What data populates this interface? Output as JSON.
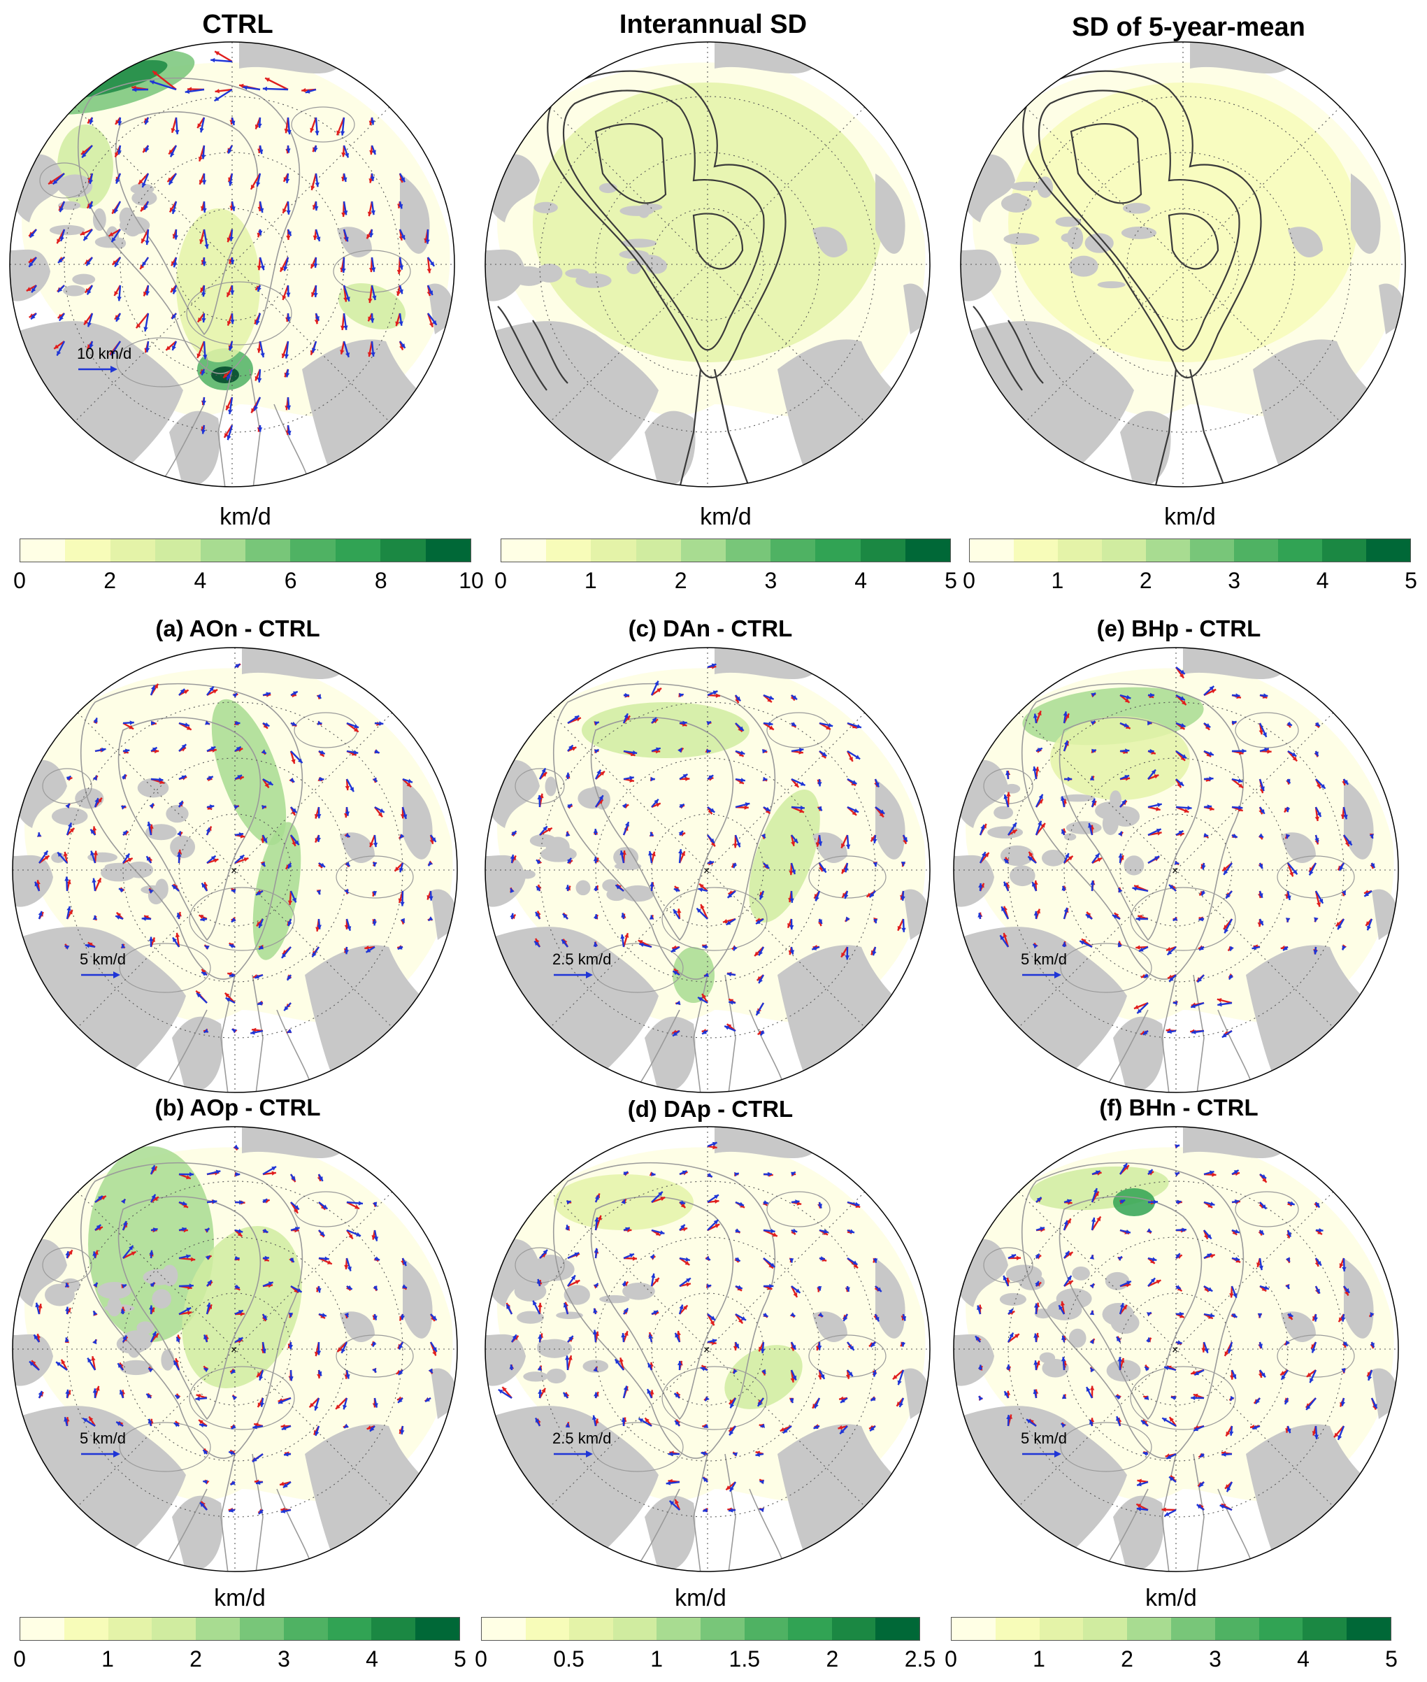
{
  "figure": {
    "colors": {
      "land": "#c8c8c8",
      "ocean_light": "#fefee6",
      "vector_red": "#e01e1e",
      "vector_blue": "#1f35d6",
      "contour": "#9a9a9a",
      "contour_dark": "#3a3a3a",
      "colormap": [
        "#ffffe5",
        "#f7fcb9",
        "#e4f3a8",
        "#d0eca0",
        "#a8dc91",
        "#78c679",
        "#4fb263",
        "#31a354",
        "#1b8843",
        "#006837",
        "#004529"
      ]
    },
    "panels": [
      {
        "id": "ctrl",
        "title": "CTRL",
        "scale_label": "10 km/d",
        "has_vectors": true,
        "vector_density": "full",
        "bathymetry": "light"
      },
      {
        "id": "interannual-sd",
        "title": "Interannual SD",
        "scale_label": "",
        "has_vectors": false,
        "bathymetry": "dark"
      },
      {
        "id": "sd-5yr",
        "title": "SD of 5-year-mean",
        "scale_label": "",
        "has_vectors": false,
        "bathymetry": "dark"
      },
      {
        "id": "a",
        "title": "(a) AOn - CTRL",
        "scale_label": "5 km/d",
        "has_vectors": true,
        "bathymetry": "light"
      },
      {
        "id": "c",
        "title": "(c) DAn - CTRL",
        "scale_label": "2.5 km/d",
        "has_vectors": true,
        "bathymetry": "light"
      },
      {
        "id": "e",
        "title": "(e) BHp - CTRL",
        "scale_label": "5 km/d",
        "has_vectors": true,
        "bathymetry": "light"
      },
      {
        "id": "b",
        "title": "(b) AOp - CTRL",
        "scale_label": "5 km/d",
        "has_vectors": true,
        "bathymetry": "light"
      },
      {
        "id": "d",
        "title": "(d) DAp - CTRL",
        "scale_label": "2.5 km/d",
        "has_vectors": true,
        "bathymetry": "light"
      },
      {
        "id": "f",
        "title": "(f) BHn - CTRL",
        "scale_label": "5 km/d",
        "has_vectors": true,
        "bathymetry": "light"
      }
    ],
    "colorbars": [
      {
        "id": "cb-ctrl",
        "unit": "km/d",
        "ticks": [
          "0",
          "2",
          "4",
          "6",
          "8",
          "10"
        ],
        "min": 0,
        "max": 10,
        "levels": 10
      },
      {
        "id": "cb-isd",
        "unit": "km/d",
        "ticks": [
          "0",
          "1",
          "2",
          "3",
          "4",
          "5"
        ],
        "min": 0,
        "max": 5,
        "levels": 10
      },
      {
        "id": "cb-sd5",
        "unit": "km/d",
        "ticks": [
          "0",
          "1",
          "2",
          "3",
          "4",
          "5"
        ],
        "min": 0,
        "max": 5,
        "levels": 10
      },
      {
        "id": "cb-ab",
        "unit": "km/d",
        "ticks": [
          "0",
          "1",
          "2",
          "3",
          "4",
          "5"
        ],
        "min": 0,
        "max": 5,
        "levels": 10
      },
      {
        "id": "cb-cd",
        "unit": "km/d",
        "ticks": [
          "0",
          "0.5",
          "1",
          "1.5",
          "2",
          "2.5"
        ],
        "min": 0,
        "max": 2.5,
        "levels": 10
      },
      {
        "id": "cb-ef",
        "unit": "km/d",
        "ticks": [
          "0",
          "1",
          "2",
          "3",
          "4",
          "5"
        ],
        "min": 0,
        "max": 5,
        "levels": 10
      }
    ]
  }
}
